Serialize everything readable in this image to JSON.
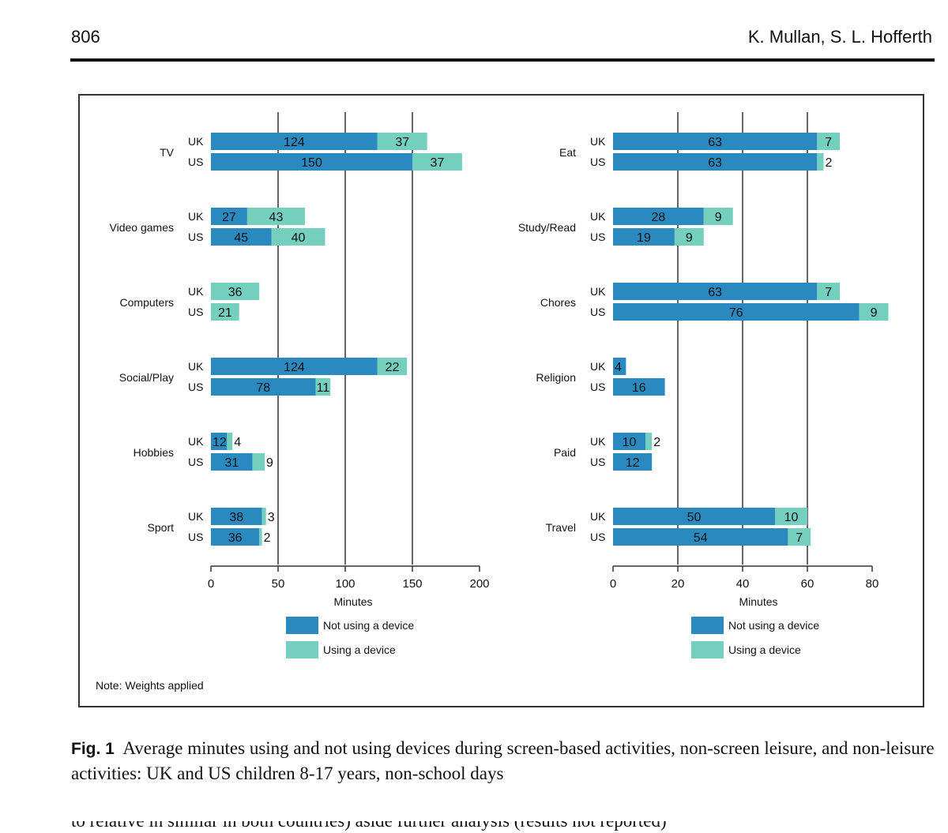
{
  "header": {
    "page_number": "806",
    "authors": "K. Mullan, S. L. Hofferth"
  },
  "figure": {
    "note": "Note: Weights applied",
    "caption_label": "Fig. 1",
    "caption_text": "Average minutes using and not using devices during screen-based activities, non-screen leisure, and non-leisure activities: UK and US children 8-17 years, non-school days"
  },
  "body_text_cut": "to relative in similar in both countries) aside further analysis (results not reported)",
  "colors": {
    "not_using": "#2a8ac0",
    "using": "#74cfbf"
  },
  "chart_data": [
    {
      "type": "bar",
      "orientation": "horizontal",
      "stacked": true,
      "xlabel": "Minutes",
      "xlim": [
        0,
        200
      ],
      "xticks": [
        0,
        50,
        100,
        150,
        200
      ],
      "vertical_gridlines": [
        50,
        100,
        150
      ],
      "legend": [
        "Not using a device",
        "Using a device"
      ],
      "legend_position": "bottom",
      "groups": [
        {
          "activity": "TV",
          "rows": [
            {
              "country": "UK",
              "not_using": 124,
              "using": 37
            },
            {
              "country": "US",
              "not_using": 150,
              "using": 37
            }
          ]
        },
        {
          "activity": "Video games",
          "rows": [
            {
              "country": "UK",
              "not_using": 27,
              "using": 43
            },
            {
              "country": "US",
              "not_using": 45,
              "using": 40
            }
          ]
        },
        {
          "activity": "Computers",
          "rows": [
            {
              "country": "UK",
              "not_using": null,
              "using": 36
            },
            {
              "country": "US",
              "not_using": null,
              "using": 21
            }
          ]
        },
        {
          "activity": "Social/Play",
          "rows": [
            {
              "country": "UK",
              "not_using": 124,
              "using": 22
            },
            {
              "country": "US",
              "not_using": 78,
              "using": 11
            }
          ]
        },
        {
          "activity": "Hobbies",
          "rows": [
            {
              "country": "UK",
              "not_using": 12,
              "using": 4
            },
            {
              "country": "US",
              "not_using": 31,
              "using": 9
            }
          ]
        },
        {
          "activity": "Sport",
          "rows": [
            {
              "country": "UK",
              "not_using": 38,
              "using": 3
            },
            {
              "country": "US",
              "not_using": 36,
              "using": 2
            }
          ]
        }
      ]
    },
    {
      "type": "bar",
      "orientation": "horizontal",
      "stacked": true,
      "xlabel": "Minutes",
      "xlim": [
        0,
        80
      ],
      "xticks": [
        0,
        20,
        40,
        60,
        80
      ],
      "vertical_gridlines": [
        20,
        40,
        60
      ],
      "legend": [
        "Not using a device",
        "Using a device"
      ],
      "legend_position": "bottom",
      "groups": [
        {
          "activity": "Eat",
          "rows": [
            {
              "country": "UK",
              "not_using": 63,
              "using": 7
            },
            {
              "country": "US",
              "not_using": 63,
              "using": 2
            }
          ]
        },
        {
          "activity": "Study/Read",
          "rows": [
            {
              "country": "UK",
              "not_using": 28,
              "using": 9
            },
            {
              "country": "US",
              "not_using": 19,
              "using": 9
            }
          ]
        },
        {
          "activity": "Chores",
          "rows": [
            {
              "country": "UK",
              "not_using": 63,
              "using": 7
            },
            {
              "country": "US",
              "not_using": 76,
              "using": 9
            }
          ]
        },
        {
          "activity": "Religion",
          "rows": [
            {
              "country": "UK",
              "not_using": 4,
              "using": null
            },
            {
              "country": "US",
              "not_using": 16,
              "using": null
            }
          ]
        },
        {
          "activity": "Paid",
          "rows": [
            {
              "country": "UK",
              "not_using": 10,
              "using": 2
            },
            {
              "country": "US",
              "not_using": 12,
              "using": null
            }
          ]
        },
        {
          "activity": "Travel",
          "rows": [
            {
              "country": "UK",
              "not_using": 50,
              "using": 10
            },
            {
              "country": "US",
              "not_using": 54,
              "using": 7
            }
          ]
        }
      ]
    }
  ]
}
